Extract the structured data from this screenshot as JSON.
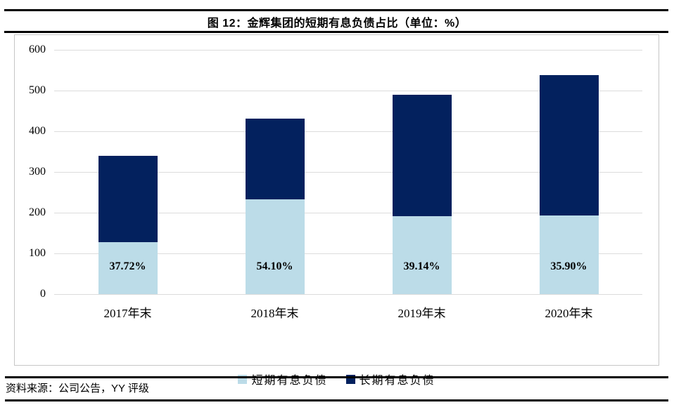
{
  "header": {
    "title": "图 12：金辉集团的短期有息负债占比（单位：%）"
  },
  "footer": {
    "source": "资料来源：公司公告，YY 评级"
  },
  "chart_data": {
    "type": "bar",
    "stacked": true,
    "title": "图 12：金辉集团的短期有息负债占比（单位：%）",
    "categories": [
      "2017年末",
      "2018年末",
      "2019年末",
      "2020年末"
    ],
    "series": [
      {
        "name": "短期有息负债",
        "color": "#BCDCE8",
        "values": [
          128,
          233,
          192,
          193
        ]
      },
      {
        "name": "长期有息负债",
        "color": "#03215E",
        "values": [
          212,
          198,
          298,
          345
        ]
      }
    ],
    "totals": [
      340,
      431,
      490,
      538
    ],
    "bar_labels": [
      "37.72%",
      "54.10%",
      "39.14%",
      "35.90%"
    ],
    "xlabel": "",
    "ylabel": "",
    "ylim": [
      0,
      600
    ],
    "yticks": [
      0,
      100,
      200,
      300,
      400,
      500,
      600
    ],
    "grid": true,
    "legend_position": "bottom",
    "colors": {
      "gridline": "#dcdcdc",
      "axis_text": "#000000"
    }
  }
}
